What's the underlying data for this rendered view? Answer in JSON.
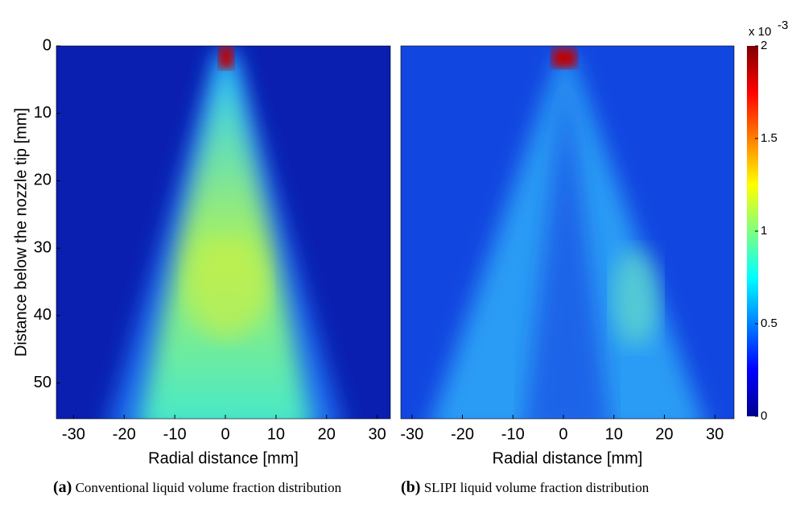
{
  "chart_data": [
    {
      "type": "heatmap",
      "xlabel": "Radial distance [mm]",
      "ylabel": "Distance below the nozzle tip [mm]",
      "xlim": [
        -33.4,
        32.6
      ],
      "ylim": [
        55.3,
        0
      ],
      "xticks": [
        -30,
        -20,
        -10,
        0,
        10,
        20,
        30
      ],
      "yticks": [
        0,
        10,
        20,
        30,
        40,
        50
      ],
      "caption_tag": "(a)",
      "caption": "Conventional liquid volume fraction distribution"
    },
    {
      "type": "heatmap",
      "xlabel": "Radial distance [mm]",
      "xlim": [
        -32.2,
        33.8
      ],
      "ylim": [
        55.3,
        0
      ],
      "xticks": [
        -30,
        -20,
        -10,
        0,
        10,
        20,
        30
      ],
      "caption_tag": "(b)",
      "caption": "SLIPI liquid volume fraction distribution",
      "colorbar": {
        "lim": [
          0,
          0.002
        ],
        "label": "x 10",
        "exponent": "-3",
        "ticks": [
          0,
          {
            "value": 0.0005,
            "label": "0.5"
          },
          {
            "value": 0.001,
            "label": "1"
          },
          {
            "value": 0.0015,
            "label": "1.5"
          },
          {
            "value": 0.002,
            "label": "2"
          }
        ]
      }
    }
  ]
}
